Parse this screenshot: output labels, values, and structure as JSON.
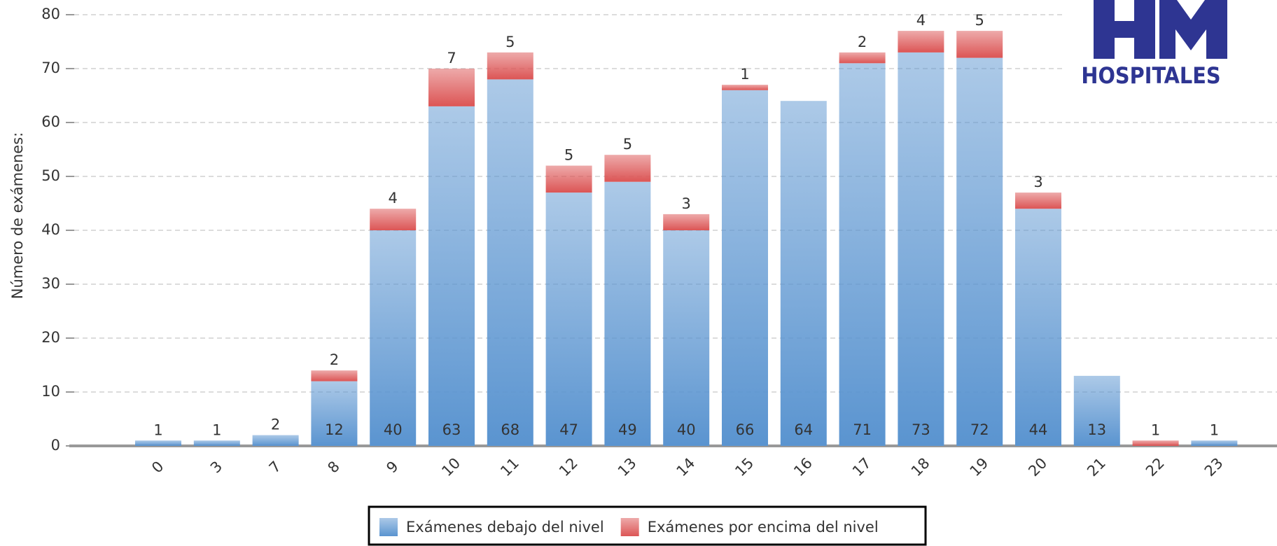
{
  "chart_data": {
    "type": "stacked_bar",
    "y_label": "Número de exámenes:",
    "logo": "HOSPITALES",
    "categories": [
      "0",
      "3",
      "7",
      "8",
      "9",
      "10",
      "11",
      "12",
      "13",
      "14",
      "15",
      "16",
      "17",
      "18",
      "19",
      "20",
      "21",
      "22",
      "23"
    ],
    "series": [
      {
        "name": "Exámenes debajo del nivel",
        "color": "#5a94d0",
        "values": [
          1,
          1,
          2,
          12,
          40,
          63,
          68,
          47,
          49,
          40,
          66,
          64,
          71,
          73,
          72,
          44,
          13,
          0,
          1
        ]
      },
      {
        "name": "Exámenes por encima del nivel",
        "color": "#dc5555",
        "values": [
          0,
          0,
          0,
          2,
          4,
          7,
          5,
          5,
          5,
          3,
          1,
          0,
          2,
          4,
          5,
          3,
          0,
          1,
          0
        ]
      }
    ],
    "ylim": [
      0,
      80
    ],
    "yticks": [
      0,
      10,
      20,
      30,
      40,
      50,
      60,
      70,
      80
    ],
    "grid": true,
    "legend": "bottom"
  }
}
